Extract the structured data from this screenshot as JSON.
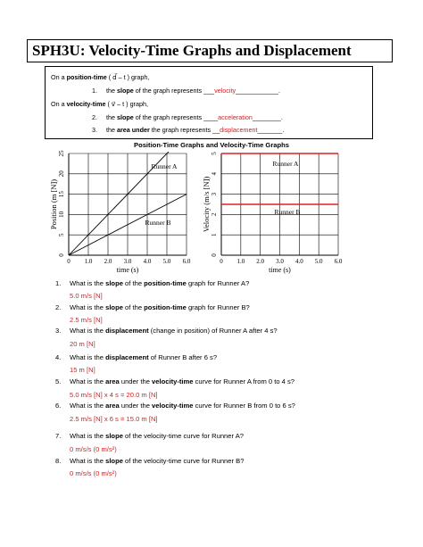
{
  "title": "SPH3U: Velocity-Time Graphs and Displacement",
  "definitions": {
    "pos_intro_pre": "On a ",
    "pos_intro_bold": "position-time",
    "pos_intro_post": " ( d⃗ – t ) graph,",
    "item1_num": "1.",
    "item1_pre": "the ",
    "item1_bold": "slope",
    "item1_post": " of the graph represents ___",
    "item1_answer": "velocity",
    "item1_tail": "____________.",
    "vel_intro_pre": "On a ",
    "vel_intro_bold": "velocity-time",
    "vel_intro_post": " ( v⃗ – t ) graph,",
    "item2_num": "2.",
    "item2_pre": "the ",
    "item2_bold": "slope",
    "item2_post": " of the graph represents ____",
    "item2_answer": "acceleration",
    "item2_tail": "________.",
    "item3_num": "3.",
    "item3_pre": "the ",
    "item3_bold": "area under",
    "item3_post": " the graph represents __",
    "item3_answer": "displacement",
    "item3_tail": "_______."
  },
  "charts_heading": "Position-Time Graphs and Velocity-Time Graphs",
  "chart_data": [
    {
      "type": "line",
      "title": "",
      "xlabel": "time (s)",
      "ylabel": "Position (m [N])",
      "xlim": [
        0,
        6
      ],
      "ylim": [
        0,
        25
      ],
      "x_ticks": [
        "0",
        "1.0",
        "2.0",
        "3.0",
        "4.0",
        "5.0",
        "6.0"
      ],
      "y_ticks": [
        "0",
        "5",
        "10",
        "15",
        "20",
        "25"
      ],
      "grid": true,
      "series": [
        {
          "name": "Runner A",
          "x": [
            0,
            5.5
          ],
          "y": [
            0,
            27.5
          ],
          "color": "#000000"
        },
        {
          "name": "Runner B",
          "x": [
            0,
            6
          ],
          "y": [
            0,
            15
          ],
          "color": "#000000"
        }
      ]
    },
    {
      "type": "line",
      "title": "",
      "xlabel": "time (s)",
      "ylabel": "Velocity (m/s [N])",
      "xlim": [
        0,
        6
      ],
      "ylim": [
        0,
        5
      ],
      "x_ticks": [
        "0",
        "1.0",
        "2.0",
        "3.0",
        "4.0",
        "5.0",
        "6.0"
      ],
      "y_ticks": [
        "0",
        "1",
        "2",
        "3",
        "4",
        "5"
      ],
      "grid": true,
      "series": [
        {
          "name": "Runner A",
          "x": [
            0,
            6
          ],
          "y": [
            5,
            5
          ],
          "color": "#e02020"
        },
        {
          "name": "Runner B",
          "x": [
            0,
            6
          ],
          "y": [
            2.5,
            2.5
          ],
          "color": "#e02020"
        }
      ]
    }
  ],
  "questions": [
    {
      "num": "1.",
      "pre": "What  is the ",
      "b1": "slope",
      "mid": " of the ",
      "b2": "position-time",
      "post": " graph for Runner A?",
      "answer": "5.0 m/s [N]"
    },
    {
      "num": "2.",
      "pre": "What is the ",
      "b1": "slope",
      "mid": " of the ",
      "b2": "position-time",
      "post": " graph for Runner B?",
      "answer": "2.5 m/s [N]"
    },
    {
      "num": "3.",
      "pre": "What is the ",
      "b1": "displacement",
      "mid": " (change in position) of Runner A after 4 s?",
      "b2": "",
      "post": "",
      "answer": "20 m [N]"
    },
    {
      "num": "4.",
      "pre": "What is the ",
      "b1": "displacement",
      "mid": " of Runner B after 6 s?",
      "b2": "",
      "post": "",
      "answer": "15 m [N]"
    },
    {
      "num": "5.",
      "pre": "What is the ",
      "b1": "area",
      "mid": " under the ",
      "b2": "velocity-time",
      "post": " curve for Runner A from 0 to 4 s?",
      "answer": "5.0 m/s [N] x 4 s = 20.0 m [N]"
    },
    {
      "num": "6.",
      "pre": "What is the ",
      "b1": "area",
      "mid": " under the ",
      "b2": "velocity-time",
      "post": " curve for Runner B from 0 to 6 s?",
      "answer": "2.5 m/s [N] x 6 s = 15.0 m [N]"
    },
    {
      "num": "7.",
      "pre": "What is the ",
      "b1": "slope",
      "mid": " of the velocity-time curve for Runner A?",
      "b2": "",
      "post": "",
      "answer": "0 m/s/s (0 m/s²)"
    },
    {
      "num": "8.",
      "pre": "What is the ",
      "b1": "slope",
      "mid": " of the velocity-time curve for Runner B?",
      "b2": "",
      "post": "",
      "answer": "0 m/s/s (0 m/s²)"
    }
  ]
}
